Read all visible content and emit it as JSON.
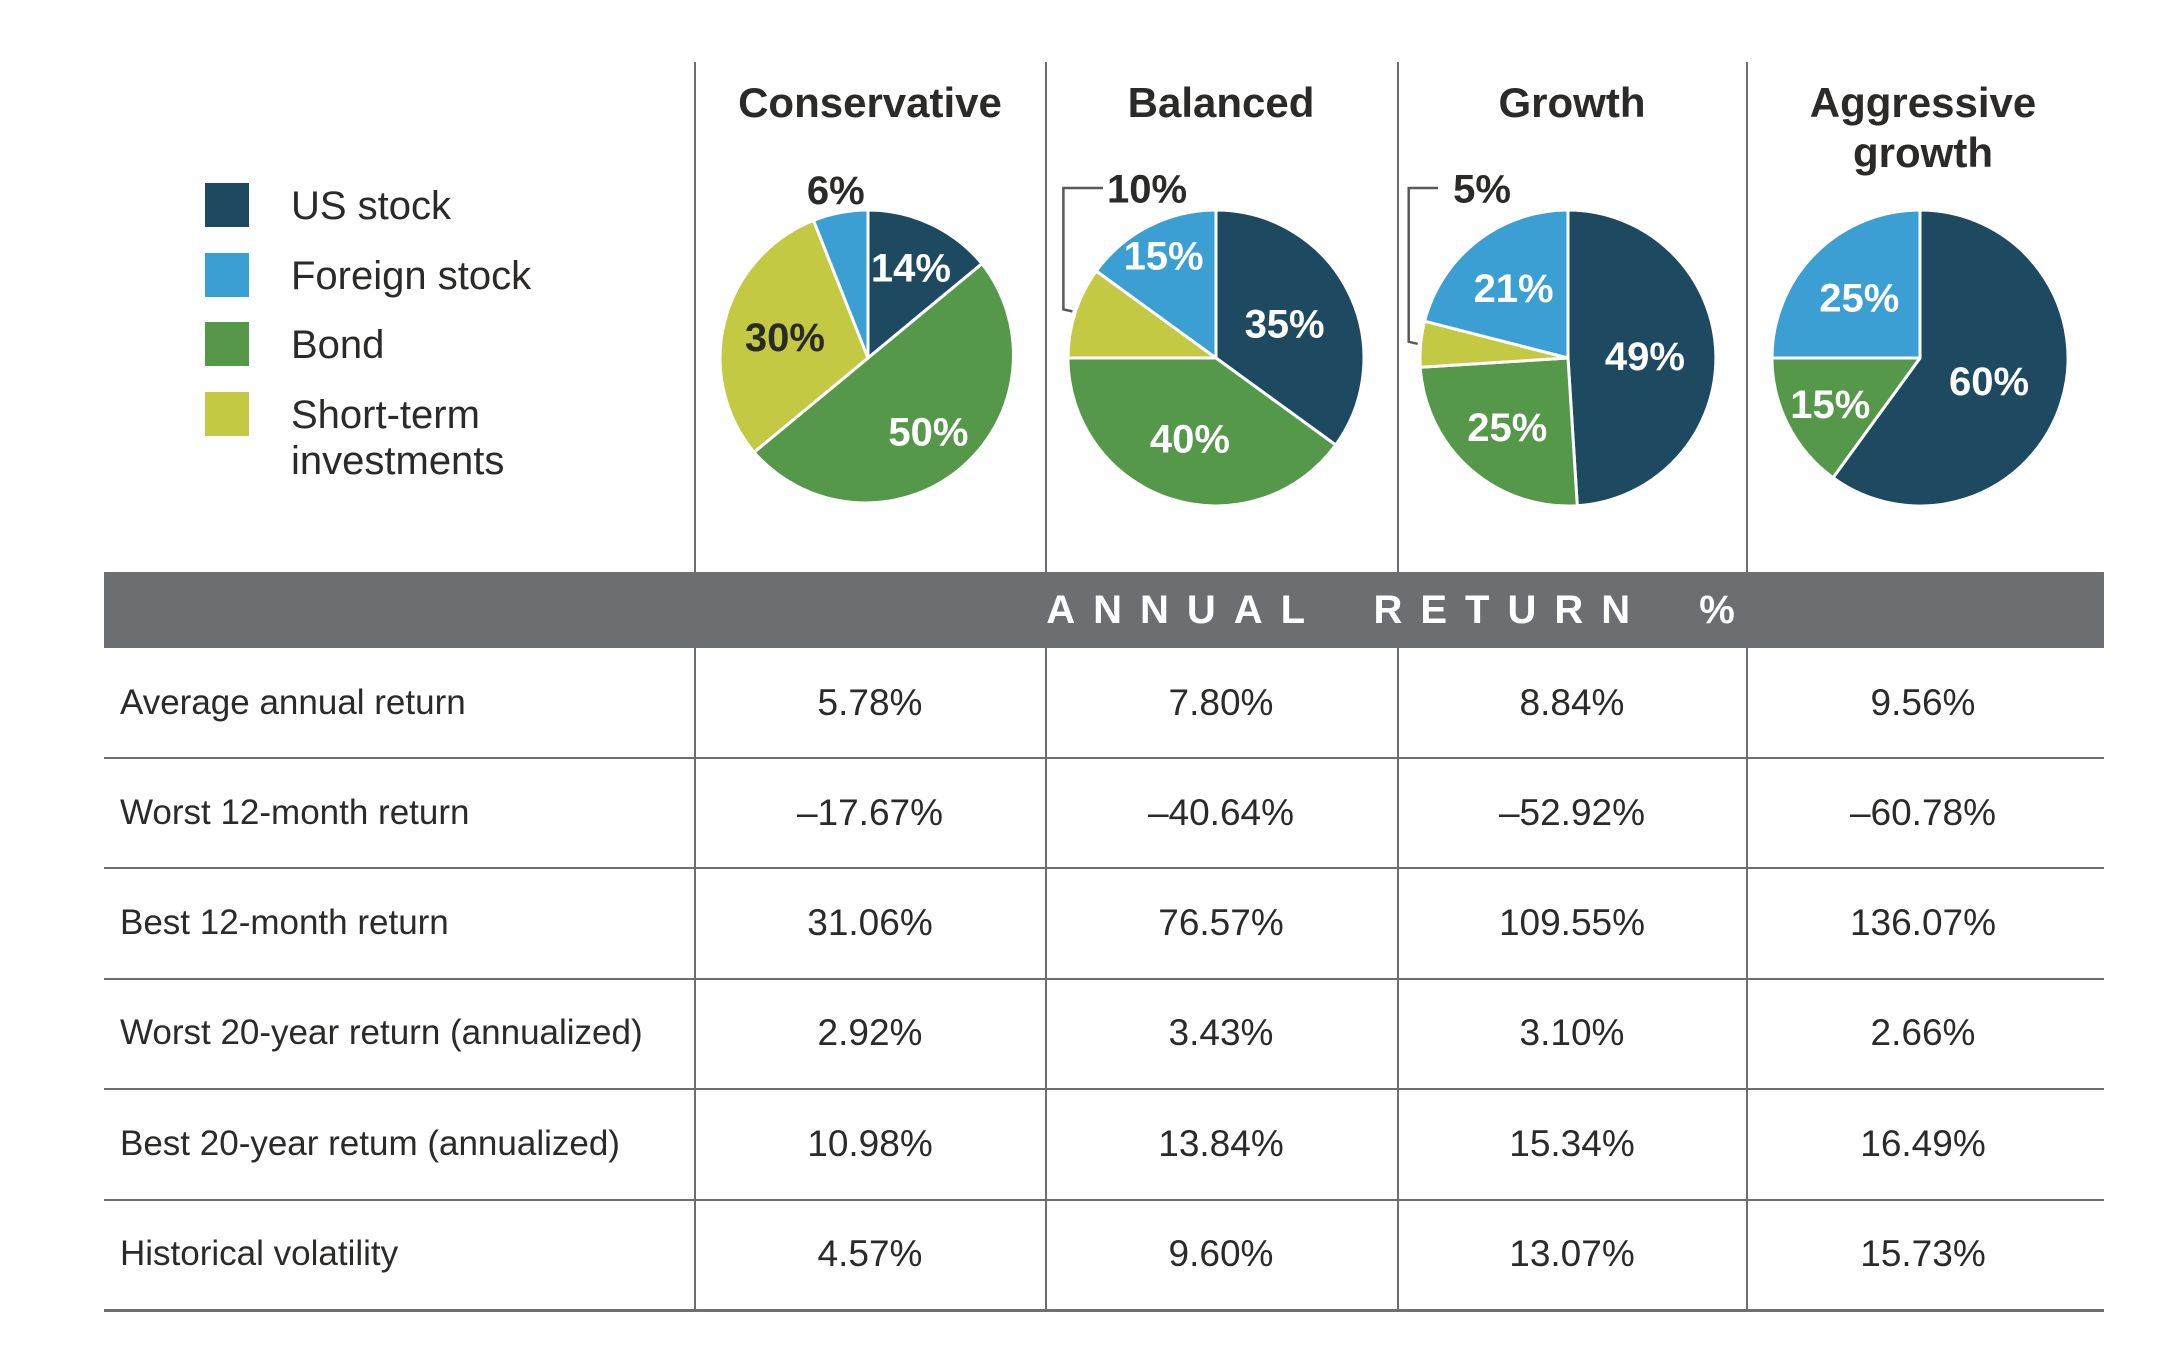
{
  "page": {
    "background": "#ffffff",
    "text_color": "#2b2a29"
  },
  "legend": {
    "items": [
      {
        "label": "US stock",
        "color": "#1e4a61"
      },
      {
        "label": "Foreign stock",
        "color": "#3b9fd3"
      },
      {
        "label": "Bond",
        "color": "#55984a"
      },
      {
        "label": "Short-term investments",
        "color": "#c3c942"
      }
    ]
  },
  "columns": [
    "Conservative",
    "Balanced",
    "Growth",
    "Aggressive growth"
  ],
  "band": {
    "title": "ANNUAL RETURN %",
    "background": "#6d6e71",
    "text_color": "#ffffff"
  },
  "chart_data": [
    {
      "type": "pie",
      "title": "Conservative",
      "slices": [
        {
          "name": "US stock",
          "value": 14,
          "color": "#1e4a61",
          "pct_label": "14%",
          "label_color": "#ffffff",
          "placement": "inside",
          "label_r": 0.68
        },
        {
          "name": "Bond",
          "value": 50,
          "color": "#55984a",
          "pct_label": "50%",
          "label_color": "#ffffff",
          "placement": "inside",
          "label_r": 0.64
        },
        {
          "name": "Short-term investments",
          "value": 30,
          "color": "#c3c942",
          "pct_label": "30%",
          "label_color": "#2b2a29",
          "placement": "inside",
          "label_r": 0.58
        },
        {
          "name": "Foreign stock",
          "value": 6,
          "color": "#3b9fd3",
          "pct_label": "6%",
          "label_color": "#2b2a29",
          "placement": "outside",
          "label_r": 1.16
        }
      ]
    },
    {
      "type": "pie",
      "title": "Balanced",
      "slices": [
        {
          "name": "US stock",
          "value": 35,
          "color": "#1e4a61",
          "pct_label": "35%",
          "label_color": "#ffffff",
          "placement": "inside",
          "label_r": 0.52
        },
        {
          "name": "Bond",
          "value": 40,
          "color": "#55984a",
          "pct_label": "40%",
          "label_color": "#ffffff",
          "placement": "inside",
          "label_r": 0.57
        },
        {
          "name": "Short-term investments",
          "value": 10,
          "color": "#c3c942",
          "pct_label": "10%",
          "label_color": "#2b2a29",
          "placement": "bracket",
          "offset": [
            -69,
            -170
          ]
        },
        {
          "name": "Foreign stock",
          "value": 15,
          "color": "#3b9fd3",
          "pct_label": "15%",
          "label_color": "#ffffff",
          "placement": "inside",
          "label_r": 0.78
        }
      ]
    },
    {
      "type": "pie",
      "title": "Growth",
      "slices": [
        {
          "name": "US stock",
          "value": 49,
          "color": "#1e4a61",
          "pct_label": "49%",
          "label_color": "#ffffff",
          "placement": "inside",
          "label_r": 0.52
        },
        {
          "name": "Bond",
          "value": 25,
          "color": "#55984a",
          "pct_label": "25%",
          "label_color": "#ffffff",
          "placement": "inside",
          "label_r": 0.62
        },
        {
          "name": "Short-term investments",
          "value": 5,
          "color": "#c3c942",
          "pct_label": "5%",
          "label_color": "#2b2a29",
          "placement": "bracket",
          "offset": [
            -86,
            -170
          ]
        },
        {
          "name": "Foreign stock",
          "value": 21,
          "color": "#3b9fd3",
          "pct_label": "21%",
          "label_color": "#ffffff",
          "placement": "inside",
          "label_r": 0.6
        }
      ]
    },
    {
      "type": "pie",
      "title": "Aggressive growth",
      "slices": [
        {
          "name": "US stock",
          "value": 60,
          "color": "#1e4a61",
          "pct_label": "60%",
          "label_color": "#ffffff",
          "placement": "inside",
          "label_r": 0.49
        },
        {
          "name": "Bond",
          "value": 15,
          "color": "#55984a",
          "pct_label": "15%",
          "label_color": "#ffffff",
          "placement": "inside",
          "label_r": 0.68
        },
        {
          "name": "Foreign stock",
          "value": 25,
          "color": "#3b9fd3",
          "pct_label": "25%",
          "label_color": "#ffffff",
          "placement": "inside",
          "label_r": 0.58
        }
      ]
    }
  ],
  "table": {
    "rows": [
      {
        "label": "Average annual return",
        "values": [
          "5.78%",
          "7.80%",
          "8.84%",
          "9.56%"
        ]
      },
      {
        "label": "Worst 12-month return",
        "values": [
          "–17.67%",
          "–40.64%",
          "–52.92%",
          "–60.78%"
        ]
      },
      {
        "label": "Best 12-month return",
        "values": [
          "31.06%",
          "76.57%",
          "109.55%",
          "136.07%"
        ]
      },
      {
        "label": "Worst 20-year return (annualized)",
        "values": [
          "2.92%",
          "3.43%",
          "3.10%",
          "2.66%"
        ]
      },
      {
        "label": "Best 20-year retum (annualized)",
        "values": [
          "10.98%",
          "13.84%",
          "15.34%",
          "16.49%"
        ]
      },
      {
        "label": "Historical volatility",
        "values": [
          "4.57%",
          "9.60%",
          "13.07%",
          "15.73%"
        ]
      }
    ]
  }
}
